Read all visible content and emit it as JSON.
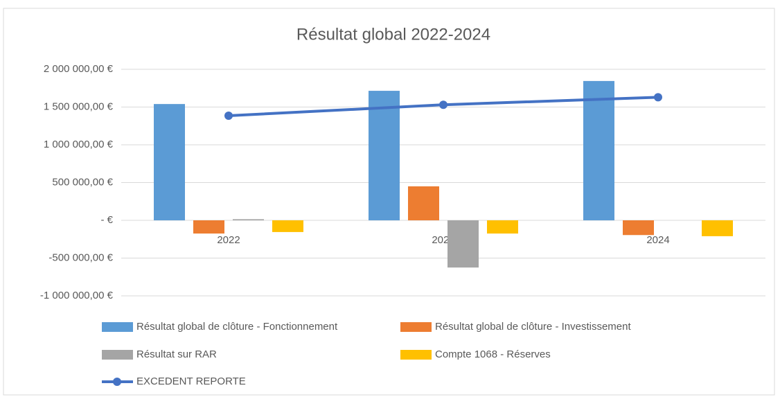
{
  "chart_data": {
    "type": "bar",
    "title": "Résultat global 2022-2024",
    "categories": [
      "2022",
      "2023",
      "2024"
    ],
    "series": [
      {
        "name": "Résultat global de clôture - Fonctionnement",
        "color": "#5b9bd5",
        "values": [
          1540000,
          1715000,
          1845000
        ]
      },
      {
        "name": "Résultat global de clôture - Investissement",
        "color": "#ed7d31",
        "values": [
          -175000,
          450000,
          -195000
        ]
      },
      {
        "name": "Résultat sur RAR",
        "color": "#a5a5a5",
        "values": [
          15000,
          -625000,
          0
        ]
      },
      {
        "name": "Compte 1068 - Réserves",
        "color": "#ffc000",
        "values": [
          -155000,
          -175000,
          -210000
        ]
      },
      {
        "name": "EXCEDENT REPORTE",
        "color": "#4472c4",
        "type": "line",
        "values": [
          1385000,
          1530000,
          1630000
        ]
      }
    ],
    "ylim": [
      -1000000,
      2000000
    ],
    "yticks": [
      {
        "value": -1000000,
        "label": "-1 000 000,00 €"
      },
      {
        "value": -500000,
        "label": "-500 000,00 €"
      },
      {
        "value": 0,
        "label": "-  €"
      },
      {
        "value": 500000,
        "label": "500 000,00 €"
      },
      {
        "value": 1000000,
        "label": "1 000 000,00 €"
      },
      {
        "value": 1500000,
        "label": "1 500 000,00 €"
      },
      {
        "value": 2000000,
        "label": "2 000 000,00 €"
      }
    ],
    "grid": true,
    "legend": "bottom"
  }
}
